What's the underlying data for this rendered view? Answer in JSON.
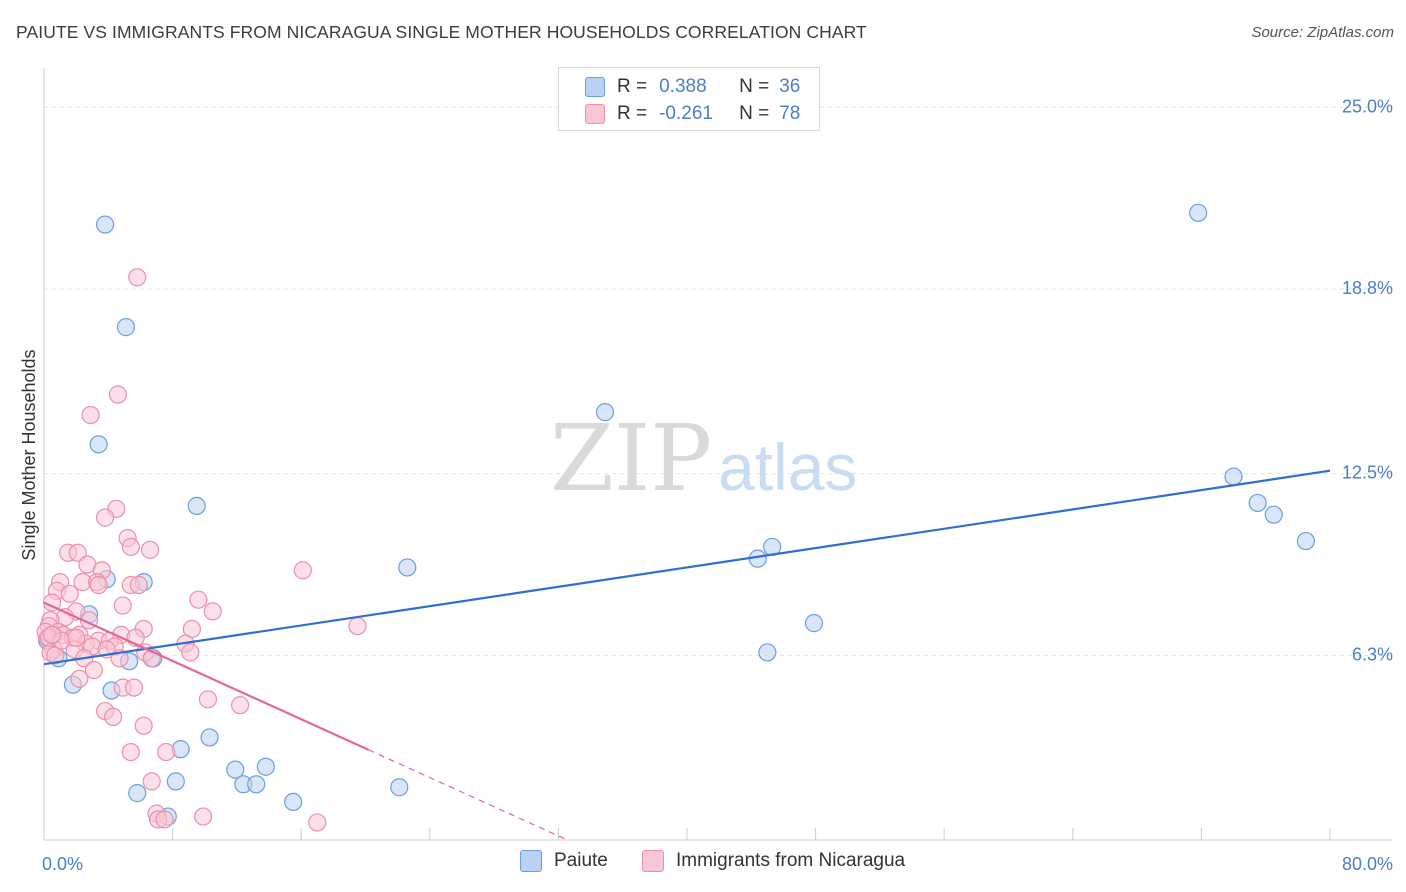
{
  "header": {
    "title": "PAIUTE VS IMMIGRANTS FROM NICARAGUA SINGLE MOTHER HOUSEHOLDS CORRELATION CHART",
    "source": "Source: ZipAtlas.com"
  },
  "watermark": {
    "zip": "ZIP",
    "atlas": "atlas"
  },
  "legend": {
    "r_label": "R =",
    "n_label": "N =",
    "items": [
      {
        "name": "Paiute",
        "r": "0.388",
        "n": "36",
        "fill": "#b8d2f3",
        "stroke": "#6a9ee0"
      },
      {
        "name": "Immigrants from Nicaragua",
        "r": "-0.261",
        "n": "78",
        "fill": "#f9c6d4",
        "stroke": "#ec8eab"
      }
    ]
  },
  "colors": {
    "paiute_line": "#2e6fcf",
    "nicaragua_line": "#e0679b",
    "tick_label": "#4a7ec9",
    "grid": "#e0e0e0"
  },
  "chart_data": {
    "type": "scatter",
    "title": "PAIUTE VS IMMIGRANTS FROM NICARAGUA SINGLE MOTHER HOUSEHOLDS CORRELATION CHART",
    "xlabel": "",
    "ylabel": "Single Mother Households",
    "xlim": [
      0,
      80
    ],
    "ylim": [
      0,
      26
    ],
    "x_tick_labels": [
      {
        "value": 0,
        "label": "0.0%"
      },
      {
        "value": 80,
        "label": "80.0%"
      }
    ],
    "y_ticks": [
      {
        "value": 6.3,
        "label": "6.3%"
      },
      {
        "value": 12.5,
        "label": "12.5%"
      },
      {
        "value": 18.8,
        "label": "18.8%"
      },
      {
        "value": 25.0,
        "label": "25.0%"
      }
    ],
    "series": [
      {
        "name": "Paiute",
        "trend": {
          "x0": 0,
          "y0": 6.0,
          "x1": 80,
          "y1": 12.6,
          "dashed_from": null
        },
        "points": [
          [
            3.8,
            21.0
          ],
          [
            5.1,
            17.5
          ],
          [
            3.4,
            13.5
          ],
          [
            9.5,
            11.4
          ],
          [
            3.9,
            8.9
          ],
          [
            6.2,
            8.8
          ],
          [
            2.8,
            7.7
          ],
          [
            0.9,
            6.2
          ],
          [
            5.3,
            6.1
          ],
          [
            6.8,
            6.2
          ],
          [
            1.8,
            5.3
          ],
          [
            4.2,
            5.1
          ],
          [
            10.3,
            3.5
          ],
          [
            8.5,
            3.1
          ],
          [
            11.9,
            2.4
          ],
          [
            13.8,
            2.5
          ],
          [
            5.8,
            1.6
          ],
          [
            8.2,
            2.0
          ],
          [
            12.4,
            1.9
          ],
          [
            13.2,
            1.9
          ],
          [
            15.5,
            1.3
          ],
          [
            7.7,
            0.8
          ],
          [
            22.1,
            1.8
          ],
          [
            34.9,
            14.6
          ],
          [
            22.6,
            9.3
          ],
          [
            45.3,
            10.0
          ],
          [
            44.4,
            9.6
          ],
          [
            47.9,
            7.4
          ],
          [
            45.0,
            6.4
          ],
          [
            71.8,
            21.4
          ],
          [
            74.0,
            12.4
          ],
          [
            75.5,
            11.5
          ],
          [
            76.5,
            11.1
          ],
          [
            78.5,
            10.2
          ],
          [
            0.2,
            6.8
          ],
          [
            0.6,
            7.0
          ]
        ]
      },
      {
        "name": "Immigrants from Nicaragua",
        "trend": {
          "x0": 0,
          "y0": 8.1,
          "x1": 80,
          "y1": -11.8,
          "solid_until_x": 20.2
        },
        "points": [
          [
            5.8,
            19.2
          ],
          [
            4.6,
            15.2
          ],
          [
            2.9,
            14.5
          ],
          [
            4.5,
            11.3
          ],
          [
            3.8,
            11.0
          ],
          [
            5.2,
            10.3
          ],
          [
            5.4,
            10.0
          ],
          [
            6.6,
            9.9
          ],
          [
            1.5,
            9.8
          ],
          [
            2.1,
            9.8
          ],
          [
            2.7,
            9.4
          ],
          [
            3.6,
            9.2
          ],
          [
            16.1,
            9.2
          ],
          [
            1.0,
            8.8
          ],
          [
            2.4,
            8.8
          ],
          [
            3.3,
            8.8
          ],
          [
            5.4,
            8.7
          ],
          [
            3.4,
            8.7
          ],
          [
            5.9,
            8.7
          ],
          [
            0.8,
            8.5
          ],
          [
            1.6,
            8.4
          ],
          [
            0.5,
            8.1
          ],
          [
            9.6,
            8.2
          ],
          [
            4.9,
            8.0
          ],
          [
            2.0,
            7.8
          ],
          [
            10.5,
            7.8
          ],
          [
            1.3,
            7.6
          ],
          [
            0.4,
            7.5
          ],
          [
            2.8,
            7.5
          ],
          [
            0.3,
            7.3
          ],
          [
            6.2,
            7.2
          ],
          [
            9.2,
            7.2
          ],
          [
            19.5,
            7.3
          ],
          [
            0.9,
            7.1
          ],
          [
            1.2,
            7.0
          ],
          [
            2.2,
            7.0
          ],
          [
            4.8,
            7.0
          ],
          [
            0.2,
            6.9
          ],
          [
            1.8,
            6.9
          ],
          [
            3.4,
            6.8
          ],
          [
            4.1,
            6.8
          ],
          [
            5.7,
            6.9
          ],
          [
            2.6,
            6.7
          ],
          [
            3.0,
            6.6
          ],
          [
            4.4,
            6.6
          ],
          [
            8.8,
            6.7
          ],
          [
            0.6,
            6.5
          ],
          [
            1.9,
            6.5
          ],
          [
            3.9,
            6.5
          ],
          [
            6.3,
            6.4
          ],
          [
            9.1,
            6.4
          ],
          [
            0.4,
            6.4
          ],
          [
            2.5,
            6.2
          ],
          [
            4.7,
            6.2
          ],
          [
            6.7,
            6.2
          ],
          [
            0.7,
            6.3
          ],
          [
            3.1,
            5.8
          ],
          [
            2.2,
            5.5
          ],
          [
            4.9,
            5.2
          ],
          [
            5.6,
            5.2
          ],
          [
            10.2,
            4.8
          ],
          [
            12.2,
            4.6
          ],
          [
            3.8,
            4.4
          ],
          [
            4.3,
            4.2
          ],
          [
            6.2,
            3.9
          ],
          [
            5.4,
            3.0
          ],
          [
            7.6,
            3.0
          ],
          [
            6.7,
            2.0
          ],
          [
            7.0,
            0.9
          ],
          [
            7.1,
            0.7
          ],
          [
            9.9,
            0.8
          ],
          [
            17.0,
            0.6
          ],
          [
            0.1,
            7.1
          ],
          [
            0.3,
            6.9
          ],
          [
            1.1,
            6.8
          ],
          [
            2.0,
            6.9
          ],
          [
            0.5,
            7.0
          ],
          [
            7.5,
            0.7
          ]
        ]
      }
    ]
  }
}
